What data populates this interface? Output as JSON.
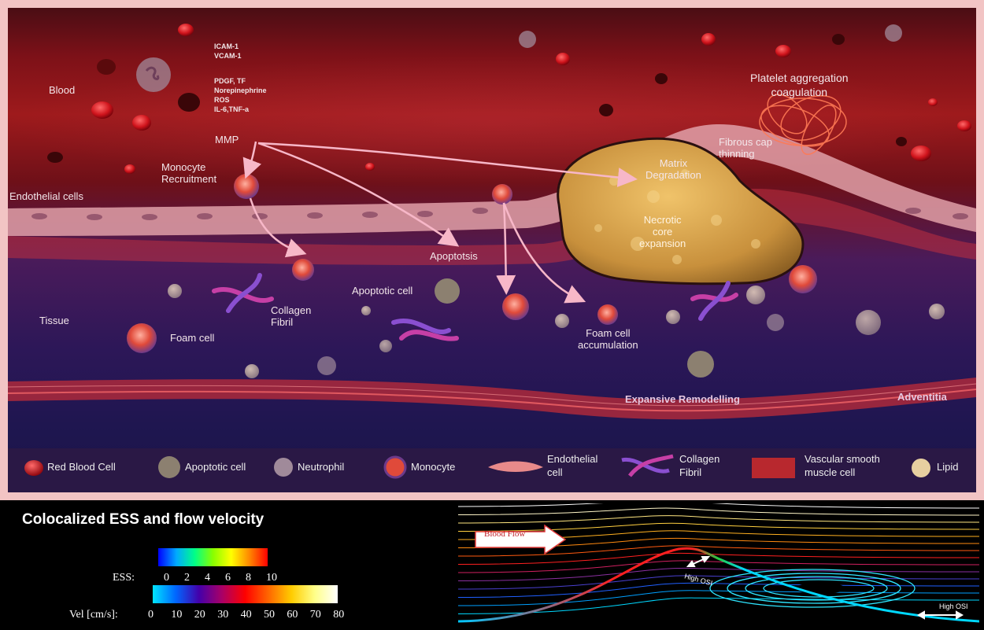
{
  "diagram": {
    "labels": {
      "blood": "Blood",
      "adhesion": "ICAM-1\nVCAM-1",
      "mediators": "PDGF, TF\nNorepinephrine\nROS\nIL-6,TNF-a",
      "mmp": "MMP",
      "monocyte_recruitment": "Monocyte\nRecruitment",
      "endothelial_cells": "Endothelial cells",
      "apoptosis": "Apoptotsis",
      "apoptotic_cell": "Apoptotic cell",
      "collagen_fibril": "Collagen\nFibril",
      "tissue": "Tissue",
      "foam_cell": "Foam cell",
      "foam_accumulation": "Foam cell\naccumulation",
      "necrotic_core": "Necrotic\ncore\nexpansion",
      "matrix_degradation": "Matrix\nDegradation",
      "fibrous_cap": "Fibrous cap\nthinning",
      "platelet": "Platelet aggregation\ncoagulation",
      "expansive_remodelling": "Expansive Remodelling",
      "adventitia": "Adventitia"
    },
    "legend": [
      {
        "label": "Red Blood Cell",
        "icon": "red-blood-cell-icon"
      },
      {
        "label": "Apoptotic cell",
        "icon": "apoptotic-cell-icon"
      },
      {
        "label": "Neutrophil",
        "icon": "neutrophil-icon"
      },
      {
        "label": "Monocyte",
        "icon": "monocyte-icon"
      },
      {
        "label": "Endothelial\ncell",
        "icon": "endothelial-cell-icon"
      },
      {
        "label": "Collagen\nFibril",
        "icon": "collagen-fibril-icon"
      },
      {
        "label": "Vascular smooth\nmuscle cell",
        "icon": "smooth-muscle-cell-icon"
      },
      {
        "label": "Lipid",
        "icon": "lipid-icon"
      }
    ]
  },
  "flow_panel": {
    "title": "Colocalized ESS and flow velocity",
    "ess_label": "ESS:",
    "ess_ticks": [
      "0",
      "2",
      "4",
      "6",
      "8",
      "10"
    ],
    "vel_label": "Vel [cm/s]:",
    "vel_ticks": [
      "0",
      "10",
      "20",
      "30",
      "40",
      "50",
      "60",
      "70",
      "80"
    ],
    "blood_flow": "Blood Flow",
    "high_osi_1": "High OSI",
    "high_osi_2": "High OSI"
  }
}
